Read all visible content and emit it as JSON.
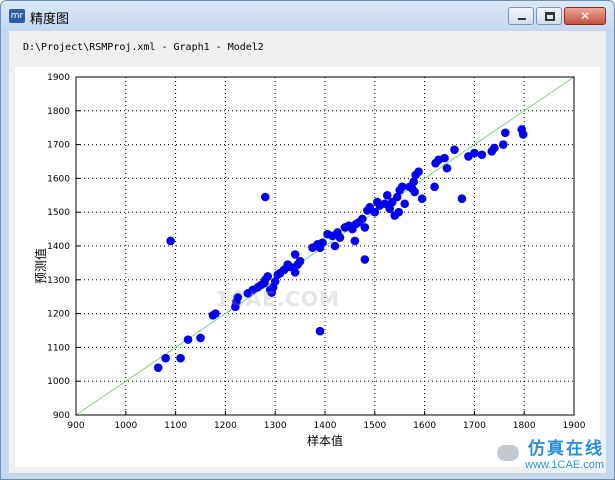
{
  "window": {
    "icon_text": "mr",
    "title": "精度图",
    "minimize_icon": "minimize-icon",
    "maximize_icon": "maximize-icon",
    "close_icon": "close-icon",
    "close_glyph": "✕"
  },
  "filepath": "D:\\Project\\RSMProj.xml - Graph1 - Model2",
  "watermarks": {
    "center": "1CAE.COM",
    "corner_main": "仿真在线",
    "corner_url": "www.1CAE.com"
  },
  "chart_data": {
    "type": "scatter",
    "xlabel": "样本值",
    "ylabel": "预测值",
    "xlim": [
      900,
      1900
    ],
    "ylim": [
      900,
      1900
    ],
    "xticks": [
      900,
      1000,
      1100,
      1200,
      1300,
      1400,
      1500,
      1600,
      1700,
      1800,
      1900
    ],
    "yticks": [
      900,
      1000,
      1100,
      1200,
      1300,
      1400,
      1500,
      1600,
      1700,
      1800,
      1900
    ],
    "grid": true,
    "reference_line": {
      "from": [
        900,
        900
      ],
      "to": [
        1900,
        1900
      ],
      "color": "#7fd07f"
    },
    "point_color": "#0000ee",
    "points": [
      [
        1065,
        1040
      ],
      [
        1080,
        1068
      ],
      [
        1110,
        1068
      ],
      [
        1125,
        1123
      ],
      [
        1150,
        1128
      ],
      [
        1090,
        1415
      ],
      [
        1175,
        1195
      ],
      [
        1180,
        1200
      ],
      [
        1220,
        1220
      ],
      [
        1222,
        1235
      ],
      [
        1225,
        1248
      ],
      [
        1245,
        1260
      ],
      [
        1255,
        1270
      ],
      [
        1265,
        1278
      ],
      [
        1272,
        1285
      ],
      [
        1278,
        1290
      ],
      [
        1280,
        1300
      ],
      [
        1285,
        1310
      ],
      [
        1290,
        1270
      ],
      [
        1293,
        1262
      ],
      [
        1296,
        1278
      ],
      [
        1300,
        1295
      ],
      [
        1305,
        1315
      ],
      [
        1310,
        1320
      ],
      [
        1318,
        1330
      ],
      [
        1325,
        1345
      ],
      [
        1330,
        1338
      ],
      [
        1340,
        1322
      ],
      [
        1345,
        1345
      ],
      [
        1350,
        1355
      ],
      [
        1340,
        1375
      ],
      [
        1280,
        1545
      ],
      [
        1375,
        1395
      ],
      [
        1385,
        1405
      ],
      [
        1390,
        1395
      ],
      [
        1390,
        1148
      ],
      [
        1395,
        1410
      ],
      [
        1405,
        1435
      ],
      [
        1415,
        1430
      ],
      [
        1420,
        1400
      ],
      [
        1425,
        1440
      ],
      [
        1430,
        1425
      ],
      [
        1440,
        1455
      ],
      [
        1448,
        1460
      ],
      [
        1455,
        1450
      ],
      [
        1460,
        1415
      ],
      [
        1462,
        1465
      ],
      [
        1468,
        1470
      ],
      [
        1475,
        1480
      ],
      [
        1480,
        1455
      ],
      [
        1480,
        1360
      ],
      [
        1485,
        1505
      ],
      [
        1490,
        1515
      ],
      [
        1500,
        1500
      ],
      [
        1505,
        1530
      ],
      [
        1510,
        1520
      ],
      [
        1520,
        1525
      ],
      [
        1525,
        1550
      ],
      [
        1530,
        1510
      ],
      [
        1535,
        1530
      ],
      [
        1540,
        1490
      ],
      [
        1545,
        1545
      ],
      [
        1548,
        1500
      ],
      [
        1550,
        1565
      ],
      [
        1555,
        1575
      ],
      [
        1560,
        1525
      ],
      [
        1570,
        1575
      ],
      [
        1575,
        1570
      ],
      [
        1578,
        1590
      ],
      [
        1580,
        1560
      ],
      [
        1582,
        1610
      ],
      [
        1588,
        1620
      ],
      [
        1595,
        1540
      ],
      [
        1620,
        1575
      ],
      [
        1622,
        1645
      ],
      [
        1628,
        1655
      ],
      [
        1640,
        1660
      ],
      [
        1645,
        1630
      ],
      [
        1660,
        1685
      ],
      [
        1675,
        1540
      ],
      [
        1688,
        1665
      ],
      [
        1700,
        1675
      ],
      [
        1715,
        1670
      ],
      [
        1735,
        1680
      ],
      [
        1740,
        1690
      ],
      [
        1758,
        1700
      ],
      [
        1762,
        1735
      ],
      [
        1795,
        1745
      ],
      [
        1798,
        1730
      ]
    ]
  }
}
